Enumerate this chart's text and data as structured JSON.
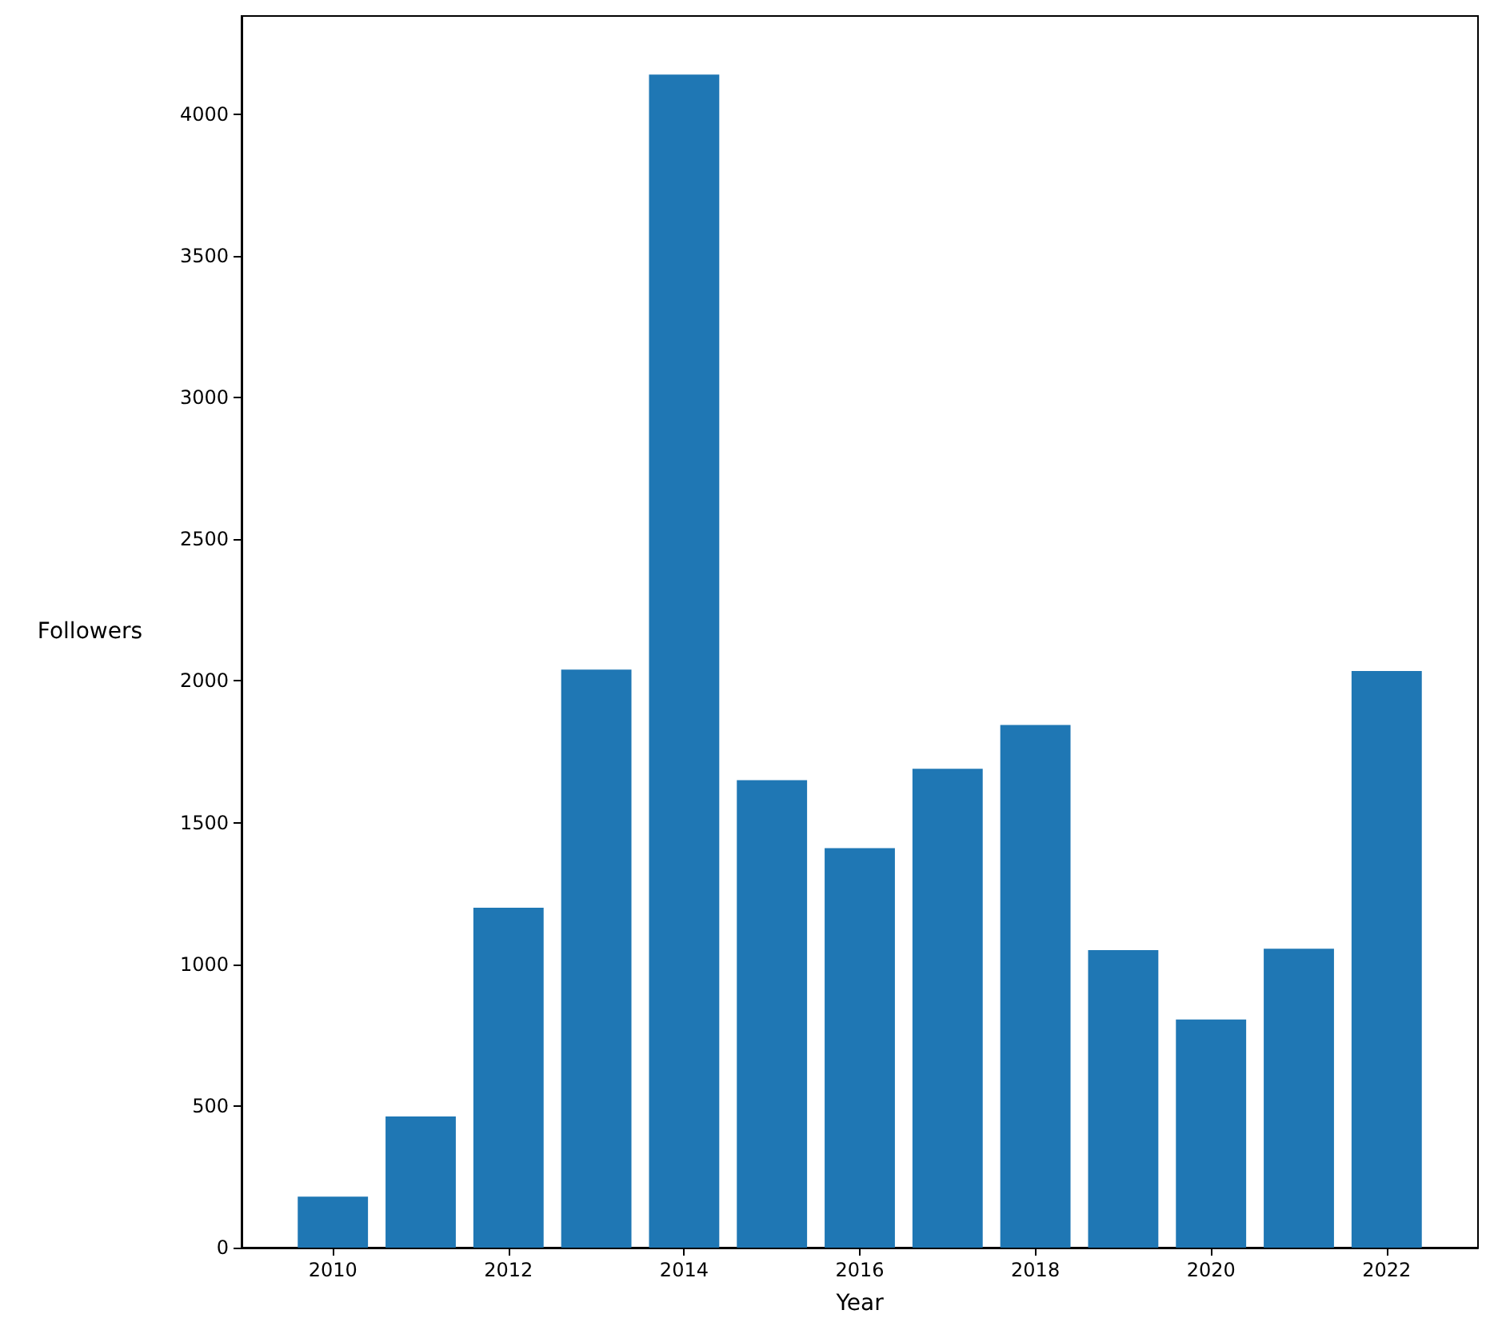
{
  "chart_data": {
    "type": "bar",
    "xlabel": "Year",
    "ylabel": "Followers",
    "x": [
      2010,
      2011,
      2012,
      2013,
      2014,
      2015,
      2016,
      2017,
      2018,
      2019,
      2020,
      2021,
      2022
    ],
    "values": [
      180,
      463,
      1200,
      2040,
      4140,
      1650,
      1410,
      1690,
      1845,
      1050,
      805,
      1055,
      2035
    ],
    "color": "#1f77b4",
    "xlim": [
      2008.96,
      2023.04
    ],
    "xticks": [
      2010,
      2012,
      2014,
      2016,
      2018,
      2020,
      2022
    ],
    "ylim": [
      0,
      4347
    ],
    "yticks": [
      0,
      500,
      1000,
      1500,
      2000,
      2500,
      3000,
      3500,
      4000
    ],
    "grid": false
  }
}
